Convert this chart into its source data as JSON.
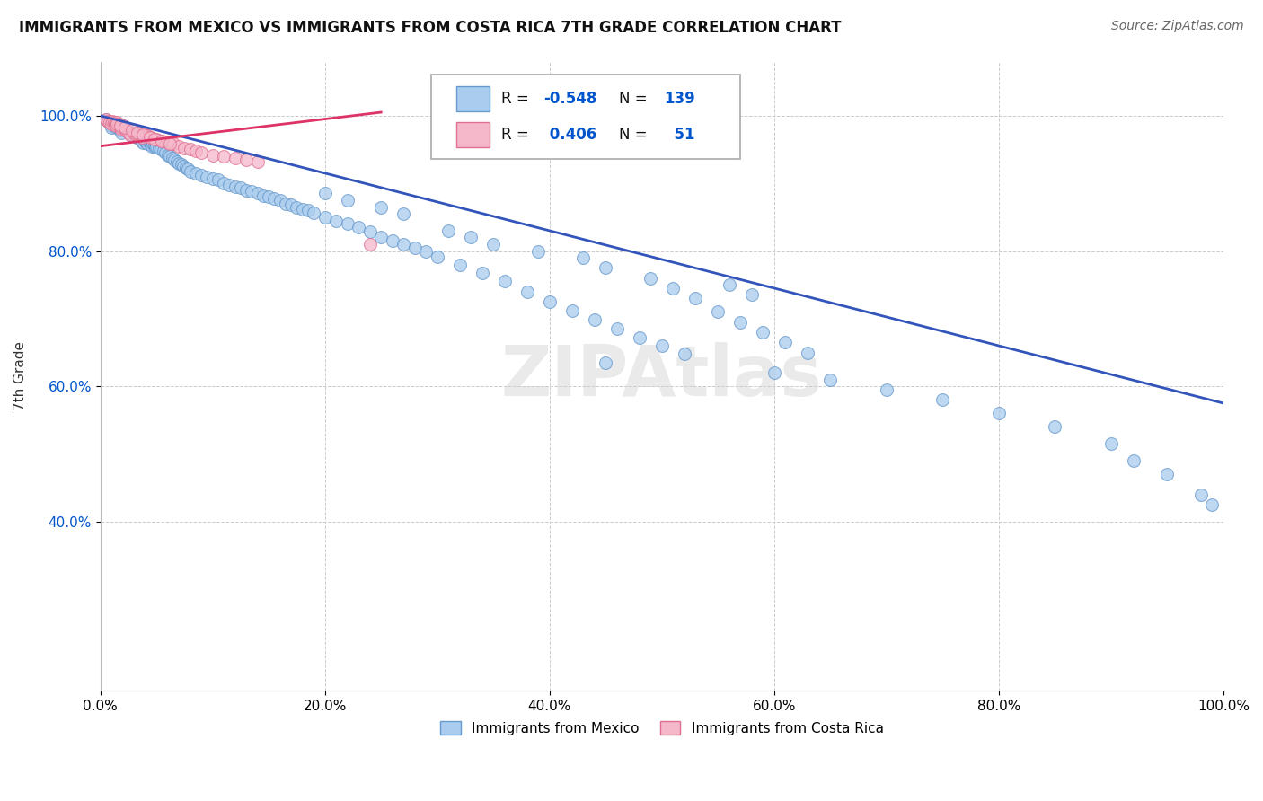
{
  "title": "IMMIGRANTS FROM MEXICO VS IMMIGRANTS FROM COSTA RICA 7TH GRADE CORRELATION CHART",
  "source": "Source: ZipAtlas.com",
  "ylabel": "7th Grade",
  "xlabel": "",
  "xlim": [
    0,
    1.0
  ],
  "ylim": [
    0.15,
    1.08
  ],
  "mexico_color": "#aaccee",
  "mexico_edge": "#6699cc",
  "costa_rica_color": "#f5b8cb",
  "costa_rica_edge": "#e07090",
  "blue_line_color": "#3355bb",
  "pink_line_color": "#dd3366",
  "R_mexico": -0.548,
  "N_mexico": 139,
  "R_costa_rica": 0.406,
  "N_costa_rica": 51,
  "legend_R_color": "#0055cc",
  "background_color": "#ffffff",
  "grid_color": "#cccccc",
  "watermark": "ZIPAtlas",
  "mexico_x": [
    0.005,
    0.007,
    0.008,
    0.009,
    0.01,
    0.01,
    0.011,
    0.012,
    0.013,
    0.014,
    0.015,
    0.015,
    0.016,
    0.017,
    0.018,
    0.019,
    0.02,
    0.02,
    0.021,
    0.022,
    0.023,
    0.024,
    0.025,
    0.026,
    0.027,
    0.028,
    0.029,
    0.03,
    0.031,
    0.032,
    0.033,
    0.034,
    0.035,
    0.036,
    0.037,
    0.038,
    0.039,
    0.04,
    0.041,
    0.042,
    0.043,
    0.044,
    0.045,
    0.046,
    0.047,
    0.048,
    0.049,
    0.05,
    0.052,
    0.054,
    0.056,
    0.058,
    0.06,
    0.062,
    0.064,
    0.066,
    0.068,
    0.07,
    0.072,
    0.074,
    0.076,
    0.078,
    0.08,
    0.085,
    0.09,
    0.095,
    0.1,
    0.105,
    0.11,
    0.115,
    0.12,
    0.125,
    0.13,
    0.135,
    0.14,
    0.145,
    0.15,
    0.155,
    0.16,
    0.165,
    0.17,
    0.175,
    0.18,
    0.185,
    0.19,
    0.2,
    0.21,
    0.22,
    0.23,
    0.24,
    0.25,
    0.26,
    0.27,
    0.28,
    0.29,
    0.3,
    0.32,
    0.34,
    0.36,
    0.38,
    0.4,
    0.42,
    0.44,
    0.46,
    0.48,
    0.5,
    0.52,
    0.53,
    0.55,
    0.57,
    0.59,
    0.61,
    0.63,
    0.56,
    0.58,
    0.49,
    0.51,
    0.43,
    0.45,
    0.39,
    0.35,
    0.33,
    0.31,
    0.27,
    0.25,
    0.22,
    0.2,
    0.45,
    0.6,
    0.65,
    0.7,
    0.75,
    0.8,
    0.85,
    0.9,
    0.92,
    0.95,
    0.98,
    0.99
  ],
  "mexico_y": [
    0.995,
    0.992,
    0.99,
    0.988,
    0.985,
    0.982,
    0.99,
    0.988,
    0.985,
    0.982,
    0.988,
    0.985,
    0.983,
    0.98,
    0.978,
    0.975,
    0.985,
    0.982,
    0.98,
    0.978,
    0.982,
    0.979,
    0.977,
    0.975,
    0.972,
    0.97,
    0.975,
    0.972,
    0.97,
    0.968,
    0.972,
    0.969,
    0.967,
    0.965,
    0.963,
    0.96,
    0.965,
    0.963,
    0.96,
    0.958,
    0.962,
    0.96,
    0.957,
    0.955,
    0.958,
    0.956,
    0.953,
    0.955,
    0.952,
    0.95,
    0.948,
    0.945,
    0.942,
    0.94,
    0.937,
    0.935,
    0.932,
    0.93,
    0.928,
    0.925,
    0.923,
    0.921,
    0.918,
    0.915,
    0.912,
    0.91,
    0.907,
    0.905,
    0.9,
    0.898,
    0.895,
    0.893,
    0.89,
    0.888,
    0.885,
    0.882,
    0.88,
    0.877,
    0.875,
    0.87,
    0.868,
    0.865,
    0.862,
    0.86,
    0.857,
    0.85,
    0.845,
    0.84,
    0.835,
    0.828,
    0.82,
    0.815,
    0.81,
    0.805,
    0.8,
    0.792,
    0.78,
    0.768,
    0.755,
    0.74,
    0.725,
    0.712,
    0.698,
    0.685,
    0.672,
    0.66,
    0.648,
    0.73,
    0.71,
    0.695,
    0.68,
    0.665,
    0.65,
    0.75,
    0.735,
    0.76,
    0.745,
    0.79,
    0.775,
    0.8,
    0.81,
    0.82,
    0.83,
    0.855,
    0.865,
    0.875,
    0.885,
    0.635,
    0.62,
    0.61,
    0.595,
    0.58,
    0.56,
    0.54,
    0.515,
    0.49,
    0.47,
    0.44,
    0.425
  ],
  "costa_rica_x": [
    0.005,
    0.007,
    0.008,
    0.01,
    0.011,
    0.012,
    0.013,
    0.014,
    0.015,
    0.016,
    0.017,
    0.018,
    0.019,
    0.02,
    0.021,
    0.022,
    0.023,
    0.025,
    0.027,
    0.03,
    0.032,
    0.035,
    0.037,
    0.04,
    0.042,
    0.045,
    0.05,
    0.055,
    0.06,
    0.065,
    0.07,
    0.075,
    0.08,
    0.085,
    0.09,
    0.1,
    0.11,
    0.12,
    0.13,
    0.14,
    0.015,
    0.018,
    0.022,
    0.028,
    0.033,
    0.038,
    0.044,
    0.048,
    0.055,
    0.062,
    0.24
  ],
  "costa_rica_y": [
    0.995,
    0.992,
    0.99,
    0.988,
    0.992,
    0.99,
    0.988,
    0.985,
    0.99,
    0.988,
    0.985,
    0.983,
    0.98,
    0.985,
    0.983,
    0.98,
    0.978,
    0.975,
    0.972,
    0.975,
    0.972,
    0.97,
    0.968,
    0.972,
    0.97,
    0.968,
    0.965,
    0.962,
    0.96,
    0.958,
    0.955,
    0.952,
    0.95,
    0.948,
    0.945,
    0.942,
    0.94,
    0.938,
    0.935,
    0.932,
    0.988,
    0.985,
    0.982,
    0.978,
    0.975,
    0.972,
    0.968,
    0.965,
    0.962,
    0.958,
    0.81
  ],
  "blue_line_x": [
    0.0,
    1.0
  ],
  "blue_line_y": [
    1.0,
    0.575
  ],
  "pink_line_x": [
    0.0,
    0.25
  ],
  "pink_line_y": [
    0.955,
    1.005
  ],
  "xticks": [
    0.0,
    0.2,
    0.4,
    0.6,
    0.8,
    1.0
  ],
  "xtick_labels": [
    "0.0%",
    "20.0%",
    "40.0%",
    "60.0%",
    "80.0%",
    "100.0%"
  ],
  "yticks": [
    0.4,
    0.6,
    0.8,
    1.0
  ],
  "ytick_labels": [
    "40.0%",
    "60.0%",
    "80.0%",
    "100.0%"
  ]
}
